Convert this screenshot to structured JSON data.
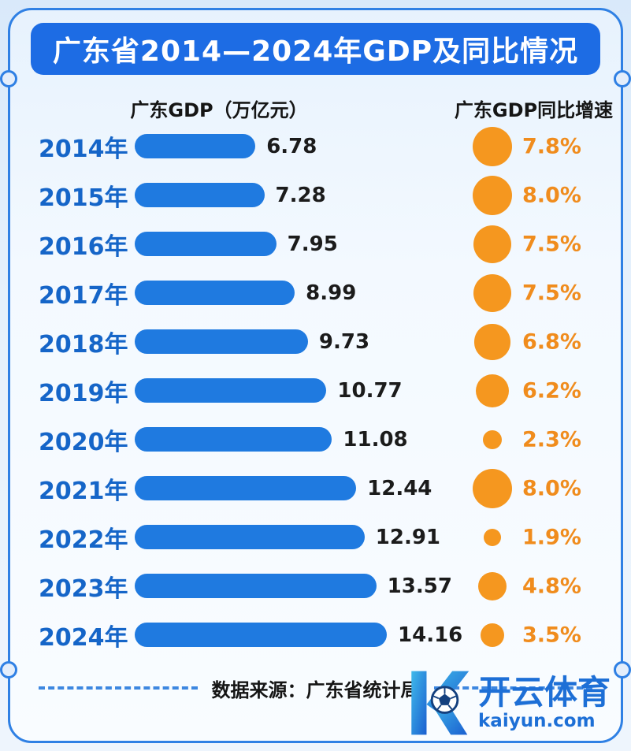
{
  "title": "广东省2014—2024年GDP及同比情况",
  "columns": {
    "gdp_header": "广东GDP（万亿元）",
    "growth_header": "广东GDP同比增速"
  },
  "source": "数据来源：广东省统计局",
  "watermark": {
    "brand": "开云体育",
    "domain": "kaiyun.com"
  },
  "colors": {
    "banner_blue": "#1d6ce4",
    "bar_blue": "#1f7ae0",
    "year_blue": "#1565c8",
    "orange_dot": "#f5971f",
    "orange_text": "#f08c1d",
    "border_blue": "#2f80e4",
    "text_dark": "#151515"
  },
  "chart_data": {
    "type": "bar",
    "title": "广东省2014—2024年GDP及同比情况",
    "categories": [
      "2014年",
      "2015年",
      "2016年",
      "2017年",
      "2018年",
      "2019年",
      "2020年",
      "2021年",
      "2022年",
      "2023年",
      "2024年"
    ],
    "series": [
      {
        "name": "广东GDP（万亿元）",
        "values": [
          6.78,
          7.28,
          7.95,
          8.99,
          9.73,
          10.77,
          11.08,
          12.44,
          12.91,
          13.57,
          14.16
        ]
      },
      {
        "name": "广东GDP同比增速(%)",
        "values": [
          7.8,
          8.0,
          7.5,
          7.5,
          6.8,
          6.2,
          2.3,
          8.0,
          1.9,
          4.8,
          3.5
        ]
      }
    ],
    "gdp_labels": [
      "6.78",
      "7.28",
      "7.95",
      "8.99",
      "9.73",
      "10.77",
      "11.08",
      "12.44",
      "12.91",
      "13.57",
      "14.16"
    ],
    "growth_labels": [
      "7.8%",
      "8.0%",
      "7.5%",
      "7.5%",
      "6.8%",
      "6.2%",
      "2.3%",
      "8.0%",
      "1.9%",
      "4.8%",
      "3.5%"
    ],
    "xlabel": "",
    "ylabel": "",
    "legend_position": "top",
    "grid": false,
    "source": "数据来源：广东省统计局"
  }
}
